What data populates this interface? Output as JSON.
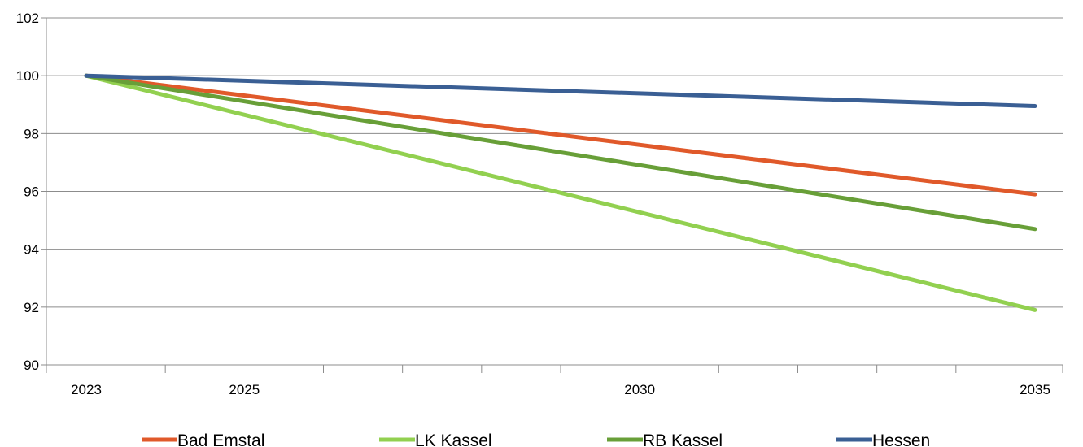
{
  "chart_data": {
    "type": "line",
    "title": "",
    "xlabel": "",
    "ylabel": "",
    "ylim": [
      90,
      102
    ],
    "yticks": [
      90,
      92,
      94,
      96,
      98,
      100,
      102
    ],
    "xlim": [
      2023,
      2035
    ],
    "x_tick_labels": [
      {
        "x": 2023,
        "label": "2023"
      },
      {
        "x": 2025,
        "label": "2025"
      },
      {
        "x": 2030,
        "label": "2030"
      },
      {
        "x": 2035,
        "label": "2035"
      }
    ],
    "x_minor_ticks": [
      2024,
      2026,
      2027,
      2028,
      2029,
      2031,
      2032,
      2033,
      2034
    ],
    "x": [
      2023,
      2035
    ],
    "grid": "horizontal",
    "legend_position": "bottom",
    "series": [
      {
        "name": "Bad Emstal",
        "color": "#e0592a",
        "values": [
          100,
          95.9
        ]
      },
      {
        "name": "LK Kassel",
        "color": "#92d050",
        "values": [
          100,
          91.9
        ]
      },
      {
        "name": "RB Kassel",
        "color": "#689f38",
        "values": [
          100,
          94.7
        ]
      },
      {
        "name": "Hessen",
        "color": "#3a5f94",
        "values": [
          100,
          98.95
        ]
      }
    ]
  }
}
